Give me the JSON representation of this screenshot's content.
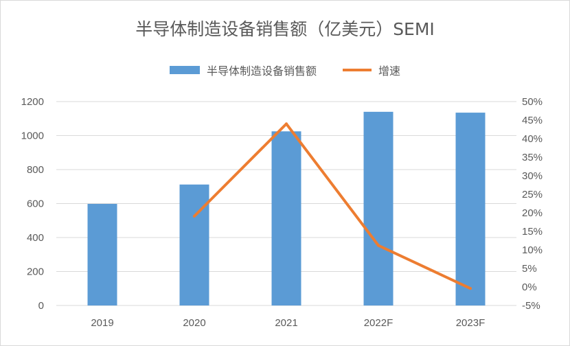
{
  "chart_data": {
    "type": "bar",
    "title": "半导体制造设备销售额（亿美元）SEMI",
    "categories": [
      "2019",
      "2020",
      "2021",
      "2022F",
      "2023F"
    ],
    "series": [
      {
        "name": "半导体制造设备销售额",
        "kind": "bar",
        "axis": "left",
        "color": "#5b9bd5",
        "values": [
          598,
          712,
          1025,
          1140,
          1135
        ]
      },
      {
        "name": "增速",
        "kind": "line",
        "axis": "right",
        "color": "#ed7d31",
        "values": [
          null,
          19.1,
          44.0,
          11.2,
          -0.4
        ]
      }
    ],
    "y_left": {
      "min": 0,
      "max": 1200,
      "ticks": [
        0,
        200,
        400,
        600,
        800,
        1000,
        1200
      ]
    },
    "y_right": {
      "min": -5,
      "max": 50,
      "ticks": [
        "-5%",
        "0%",
        "5%",
        "10%",
        "15%",
        "20%",
        "25%",
        "30%",
        "35%",
        "40%",
        "45%",
        "50%"
      ]
    },
    "grid": true,
    "legend_position": "top"
  }
}
